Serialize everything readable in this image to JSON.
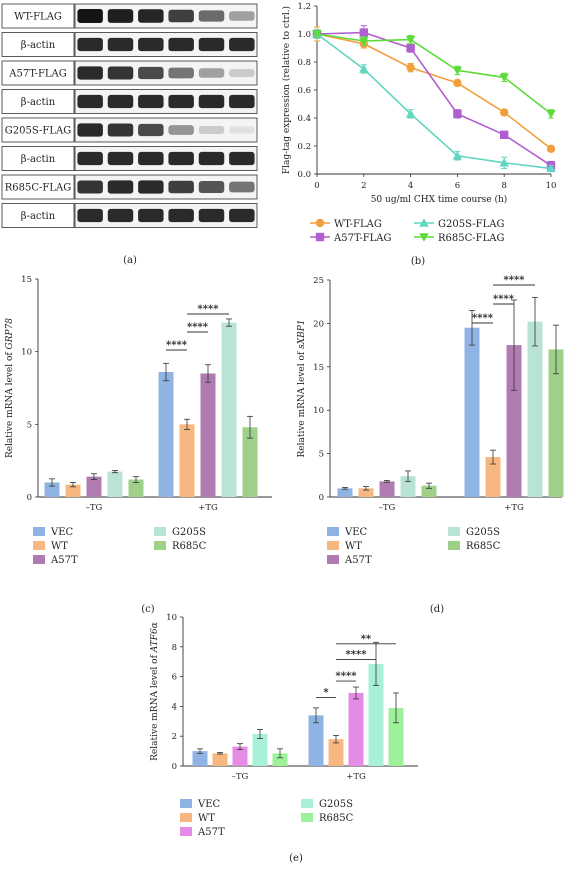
{
  "western_blot": {
    "panel_label": "(a)",
    "rows": [
      {
        "label": "WT-FLAG",
        "bands": [
          1.0,
          0.95,
          0.92,
          0.8,
          0.6,
          0.35
        ]
      },
      {
        "label": "β-actin",
        "bands": [
          0.9,
          0.9,
          0.9,
          0.9,
          0.9,
          0.9
        ]
      },
      {
        "label": "A57T-FLAG",
        "bands": [
          0.9,
          0.85,
          0.75,
          0.55,
          0.35,
          0.15
        ]
      },
      {
        "label": "β-actin",
        "bands": [
          0.9,
          0.9,
          0.9,
          0.9,
          0.9,
          0.9
        ]
      },
      {
        "label": "G205S-FLAG",
        "bands": [
          0.9,
          0.85,
          0.75,
          0.4,
          0.15,
          0.05
        ]
      },
      {
        "label": "β-actin",
        "bands": [
          0.9,
          0.9,
          0.9,
          0.9,
          0.9,
          0.9
        ]
      },
      {
        "label": "R685C-FLAG",
        "bands": [
          0.85,
          0.9,
          0.9,
          0.8,
          0.7,
          0.55
        ]
      },
      {
        "label": "β-actin",
        "bands": [
          0.9,
          0.9,
          0.9,
          0.9,
          0.9,
          0.9
        ]
      }
    ]
  },
  "chart_data": [
    {
      "panel_label": "(b)",
      "type": "line",
      "xlabel": "50 ug/ml CHX time course (h)",
      "ylabel": "Flag-tag expression (relative to ctrl.)",
      "x": [
        0,
        2,
        4,
        6,
        8,
        10
      ],
      "xlim": [
        0,
        10
      ],
      "ylim": [
        0,
        1.2
      ],
      "xticks": [
        "0",
        "2",
        "4",
        "6",
        "8",
        "10"
      ],
      "yticks": [
        "0.0",
        "0.2",
        "0.4",
        "0.6",
        "0.8",
        "1.0",
        "1.2"
      ],
      "series": [
        {
          "name": "WT-FLAG",
          "color": "#f2a03f",
          "marker": "circle",
          "values": [
            1.0,
            0.93,
            0.76,
            0.65,
            0.44,
            0.18
          ],
          "errors": [
            0.05,
            0.03,
            0.03,
            0.02,
            0.02,
            0.02
          ]
        },
        {
          "name": "A57T-FLAG",
          "color": "#b15fd0",
          "marker": "square",
          "values": [
            1.0,
            1.01,
            0.9,
            0.43,
            0.28,
            0.06
          ],
          "errors": [
            0.03,
            0.05,
            0.03,
            0.03,
            0.02,
            0.03
          ]
        },
        {
          "name": "G205S-FLAG",
          "color": "#5fd6c0",
          "marker": "triangle",
          "values": [
            1.0,
            0.75,
            0.43,
            0.13,
            0.08,
            0.04
          ],
          "errors": [
            0.03,
            0.03,
            0.03,
            0.03,
            0.04,
            0.02
          ]
        },
        {
          "name": "R685C-FLAG",
          "color": "#5cdc3a",
          "marker": "triangle-down",
          "values": [
            1.0,
            0.95,
            0.96,
            0.74,
            0.69,
            0.43
          ],
          "errors": [
            0.02,
            0.03,
            0.03,
            0.03,
            0.03,
            0.03
          ]
        }
      ]
    },
    {
      "panel_label": "(c)",
      "type": "bar",
      "ylabel_prefix": "Relative mRNA level of ",
      "ylabel_gene": "GRP78",
      "categories": [
        "–TG",
        "+TG"
      ],
      "ylim": [
        0,
        15
      ],
      "yticks": [
        "0",
        "5",
        "10",
        "15"
      ],
      "series": [
        {
          "name": "VEC",
          "color": "#8fb4e3",
          "values": [
            1.0,
            8.6
          ],
          "errors": [
            0.25,
            0.6
          ]
        },
        {
          "name": "WT",
          "color": "#f6b780",
          "values": [
            0.85,
            5.0
          ],
          "errors": [
            0.15,
            0.35
          ]
        },
        {
          "name": "A57T",
          "color": "#b07bb0",
          "values": [
            1.4,
            8.5
          ],
          "errors": [
            0.2,
            0.6
          ]
        },
        {
          "name": "G205S",
          "color": "#b9e3d6",
          "values": [
            1.75,
            12.0
          ],
          "errors": [
            0.08,
            0.25
          ]
        },
        {
          "name": "R685C",
          "color": "#9fd08a",
          "values": [
            1.2,
            4.8
          ],
          "errors": [
            0.2,
            0.75
          ]
        }
      ],
      "significance": [
        {
          "from": 0,
          "to": 1,
          "label": "****"
        },
        {
          "from": 1,
          "to": 2,
          "label": "****"
        },
        {
          "from": 1,
          "to": 3,
          "label": "****"
        }
      ]
    },
    {
      "panel_label": "(d)",
      "type": "bar",
      "ylabel_prefix": "Relative mRNA level of ",
      "ylabel_gene": "sXBP1",
      "categories": [
        "–TG",
        "+TG"
      ],
      "ylim": [
        0,
        25
      ],
      "yticks": [
        "0",
        "5",
        "10",
        "15",
        "20",
        "25"
      ],
      "series": [
        {
          "name": "VEC",
          "color": "#8fb4e3",
          "values": [
            1.0,
            19.5
          ],
          "errors": [
            0.1,
            2.0
          ]
        },
        {
          "name": "WT",
          "color": "#f6b780",
          "values": [
            1.0,
            4.6
          ],
          "errors": [
            0.2,
            0.8
          ]
        },
        {
          "name": "A57T",
          "color": "#b07bb0",
          "values": [
            1.8,
            17.5
          ],
          "errors": [
            0.1,
            5.2
          ]
        },
        {
          "name": "G205S",
          "color": "#b9e3d6",
          "values": [
            2.4,
            20.2
          ],
          "errors": [
            0.6,
            2.8
          ]
        },
        {
          "name": "R685C",
          "color": "#9fd08a",
          "values": [
            1.3,
            17.0
          ],
          "errors": [
            0.3,
            2.8
          ]
        }
      ],
      "significance": [
        {
          "from": 0,
          "to": 1,
          "label": "****"
        },
        {
          "from": 1,
          "to": 2,
          "label": "****"
        },
        {
          "from": 1,
          "to": 3,
          "label": "****"
        }
      ]
    },
    {
      "panel_label": "(e)",
      "type": "bar",
      "ylabel_prefix": "Relative mRNA level of ",
      "ylabel_gene": "ATF6α",
      "categories": [
        "–TG",
        "+TG"
      ],
      "ylim": [
        0,
        10
      ],
      "yticks": [
        "0",
        "2",
        "4",
        "6",
        "8",
        "10"
      ],
      "series": [
        {
          "name": "VEC",
          "color": "#8fb4e3",
          "values": [
            1.0,
            3.4
          ],
          "errors": [
            0.15,
            0.5
          ]
        },
        {
          "name": "WT",
          "color": "#f6b780",
          "values": [
            0.85,
            1.8
          ],
          "errors": [
            0.05,
            0.25
          ]
        },
        {
          "name": "A57T",
          "color": "#e58be6",
          "values": [
            1.3,
            4.9
          ],
          "errors": [
            0.2,
            0.4
          ]
        },
        {
          "name": "G205S",
          "color": "#a8f0d6",
          "values": [
            2.15,
            6.85
          ],
          "errors": [
            0.3,
            1.45
          ]
        },
        {
          "name": "R685C",
          "color": "#9ef09a",
          "values": [
            0.85,
            3.9
          ],
          "errors": [
            0.3,
            1.0
          ]
        }
      ],
      "significance": [
        {
          "from": 0,
          "to": 1,
          "label": "*"
        },
        {
          "from": 1,
          "to": 2,
          "label": "****"
        },
        {
          "from": 1,
          "to": 3,
          "label": "****"
        },
        {
          "from": 1,
          "to": 4,
          "label": "**"
        }
      ]
    }
  ]
}
